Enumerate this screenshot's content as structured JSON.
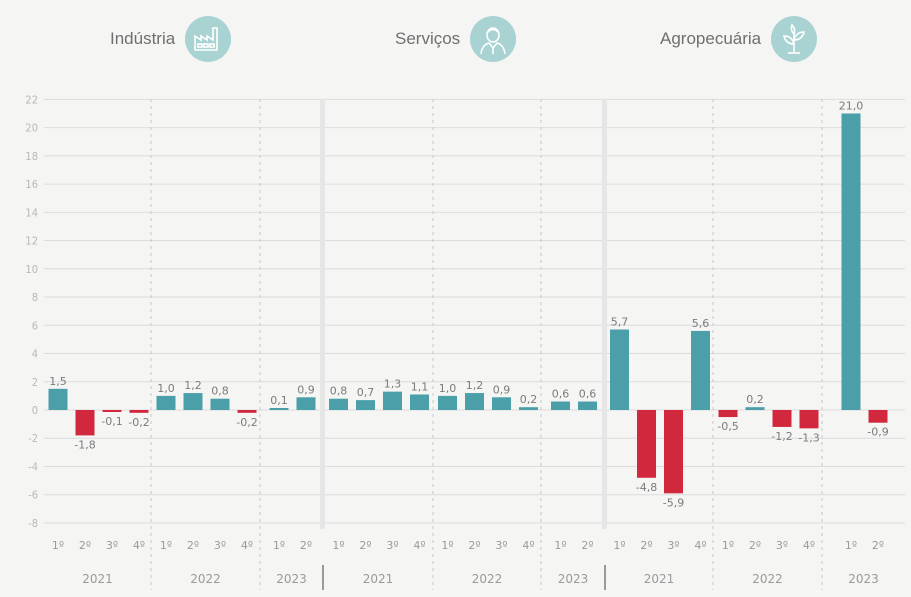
{
  "colors": {
    "positive": "#4a9fa9",
    "negative": "#d1283e",
    "icon_bg": "#a9d3d3",
    "grid": "#dcdcdc"
  },
  "chart_data": {
    "type": "bar",
    "yticks": [
      22,
      20,
      18,
      16,
      14,
      12,
      10,
      8,
      6,
      4,
      2,
      0,
      -2,
      -4,
      -6,
      -8
    ],
    "ylim": [
      -8,
      22
    ],
    "grid": true,
    "panels": [
      {
        "title": "Indústria",
        "icon": "factory-icon",
        "groups": [
          {
            "year": "2021",
            "quarters": [
              "1º",
              "2º",
              "3º",
              "4º"
            ],
            "values": [
              1.5,
              -1.8,
              -0.1,
              -0.2
            ],
            "labels": [
              "1,5",
              "-1,8",
              "-0,1",
              "-0,2"
            ]
          },
          {
            "year": "2022",
            "quarters": [
              "1º",
              "2º",
              "3º",
              "4º"
            ],
            "values": [
              1.0,
              1.2,
              0.8,
              -0.2
            ],
            "labels": [
              "1,0",
              "1,2",
              "0,8",
              "-0,2"
            ]
          },
          {
            "year": "2023",
            "quarters": [
              "1º",
              "2º"
            ],
            "values": [
              0.1,
              0.9
            ],
            "labels": [
              "0,1",
              "0,9"
            ]
          }
        ]
      },
      {
        "title": "Serviços",
        "icon": "person-icon",
        "groups": [
          {
            "year": "2021",
            "quarters": [
              "1º",
              "2º",
              "3º",
              "4º"
            ],
            "values": [
              0.8,
              0.7,
              1.3,
              1.1
            ],
            "labels": [
              "0,8",
              "0,7",
              "1,3",
              "1,1"
            ]
          },
          {
            "year": "2022",
            "quarters": [
              "1º",
              "2º",
              "3º",
              "4º"
            ],
            "values": [
              1.0,
              1.2,
              0.9,
              0.2
            ],
            "labels": [
              "1,0",
              "1,2",
              "0,9",
              "0,2"
            ]
          },
          {
            "year": "2023",
            "quarters": [
              "1º",
              "2º"
            ],
            "values": [
              0.6,
              0.6
            ],
            "labels": [
              "0,6",
              "0,6"
            ]
          }
        ]
      },
      {
        "title": "Agropecuária",
        "icon": "plant-icon",
        "groups": [
          {
            "year": "2021",
            "quarters": [
              "1º",
              "2º",
              "3º",
              "4º"
            ],
            "values": [
              5.7,
              -4.8,
              -5.9,
              5.6
            ],
            "labels": [
              "5,7",
              "-4,8",
              "-5,9",
              "5,6"
            ]
          },
          {
            "year": "2022",
            "quarters": [
              "1º",
              "2º",
              "3º",
              "4º"
            ],
            "values": [
              -0.5,
              0.2,
              -1.2,
              -1.3
            ],
            "labels": [
              "-0,5",
              "0,2",
              "-1,2",
              "-1,3"
            ]
          },
          {
            "year": "2023",
            "quarters": [
              "1º",
              "2º"
            ],
            "values": [
              21.0,
              -0.9
            ],
            "labels": [
              "21,0",
              "-0,9"
            ]
          }
        ]
      }
    ]
  }
}
